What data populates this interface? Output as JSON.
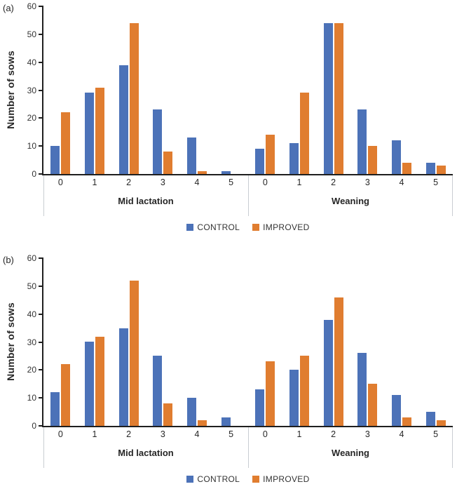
{
  "colors": {
    "control": "#4C72B8",
    "improved": "#E07D30",
    "axis": "#1F1F1F",
    "label_text": "#262626",
    "divider": "#C9CDD2"
  },
  "chart_data": [
    {
      "type": "bar",
      "panel_label": "(a)",
      "ylabel": "Number of sows",
      "xlabel": "",
      "ylim": [
        0,
        60
      ],
      "yticks": [
        0,
        10,
        20,
        30,
        40,
        50,
        60
      ],
      "grid": false,
      "legend_position": "bottom-center",
      "legend": [
        {
          "name": "CONTROL",
          "color_key": "control"
        },
        {
          "name": "IMPROVED",
          "color_key": "improved"
        }
      ],
      "groups": [
        {
          "label": "Mid lactation",
          "categories": [
            "0",
            "1",
            "2",
            "3",
            "4",
            "5"
          ],
          "series": [
            {
              "name": "CONTROL",
              "values": [
                10,
                29,
                39,
                23,
                13,
                1
              ]
            },
            {
              "name": "IMPROVED",
              "values": [
                22,
                31,
                54,
                8,
                1,
                0
              ]
            }
          ]
        },
        {
          "label": "Weaning",
          "categories": [
            "0",
            "1",
            "2",
            "3",
            "4",
            "5"
          ],
          "series": [
            {
              "name": "CONTROL",
              "values": [
                9,
                11,
                54,
                23,
                12,
                4
              ]
            },
            {
              "name": "IMPROVED",
              "values": [
                14,
                29,
                54,
                10,
                4,
                3
              ]
            }
          ]
        }
      ]
    },
    {
      "type": "bar",
      "panel_label": "(b)",
      "ylabel": "Number of sows",
      "xlabel": "",
      "ylim": [
        0,
        60
      ],
      "yticks": [
        0,
        10,
        20,
        30,
        40,
        50,
        60
      ],
      "grid": false,
      "legend_position": "bottom-center",
      "legend": [
        {
          "name": "CONTROL",
          "color_key": "control"
        },
        {
          "name": "IMPROVED",
          "color_key": "improved"
        }
      ],
      "groups": [
        {
          "label": "Mid lactation",
          "categories": [
            "0",
            "1",
            "2",
            "3",
            "4",
            "5"
          ],
          "series": [
            {
              "name": "CONTROL",
              "values": [
                12,
                30,
                35,
                25,
                10,
                3
              ]
            },
            {
              "name": "IMPROVED",
              "values": [
                22,
                32,
                52,
                8,
                2,
                0
              ]
            }
          ]
        },
        {
          "label": "Weaning",
          "categories": [
            "0",
            "1",
            "2",
            "3",
            "4",
            "5"
          ],
          "series": [
            {
              "name": "CONTROL",
              "values": [
                13,
                20,
                38,
                26,
                11,
                5
              ]
            },
            {
              "name": "IMPROVED",
              "values": [
                23,
                25,
                46,
                15,
                3,
                2
              ]
            }
          ]
        }
      ]
    }
  ]
}
